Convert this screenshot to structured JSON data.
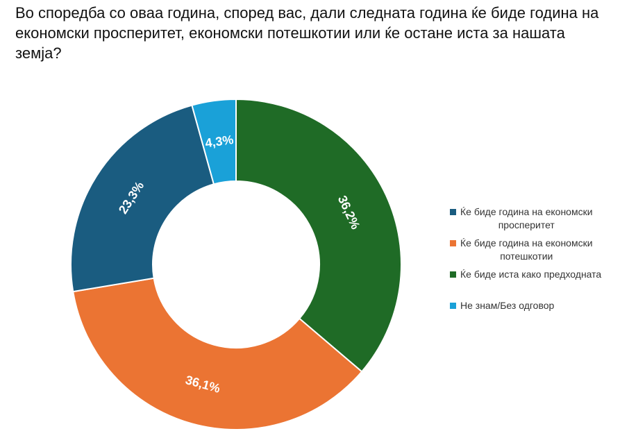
{
  "title": "Во споредба со оваа година, според вас, дали следната година ќе биде година на економски просперитет, економски потешкотии или ќе остане иста за нашата земја?",
  "chart_data": {
    "type": "pie",
    "donut": true,
    "title": "Во споредба со оваа година, според вас, дали следната година ќе биде година на економски просперитет, економски потешкотии или ќе остане иста за нашата земја?",
    "legend_position": "right",
    "categories": [
      "Ќе биде година на економски просперитет",
      "Ќе биде година на економски потешкотии",
      "Ќе биде иста како предходната",
      "Не знам/Без одговор"
    ],
    "values": [
      23.3,
      36.1,
      36.2,
      4.3
    ],
    "labels": [
      "23,3%",
      "36,1%",
      "36,2%",
      "4,3%"
    ],
    "colors": [
      "#1a5c80",
      "#eb7433",
      "#1f6b26",
      "#1aa1d8"
    ]
  },
  "legend": [
    {
      "line1": "Ќе биде година на економски",
      "line2": "просперитет",
      "color": "#1a5c80"
    },
    {
      "line1": "Ќе биде година на економски",
      "line2": "потешкотии",
      "color": "#eb7433"
    },
    {
      "line1": "Ќе биде иста како предходната",
      "line2": "",
      "color": "#1f6b26"
    },
    {
      "line1": "Не знам/Без одговор",
      "line2": "",
      "color": "#1aa1d8"
    }
  ]
}
